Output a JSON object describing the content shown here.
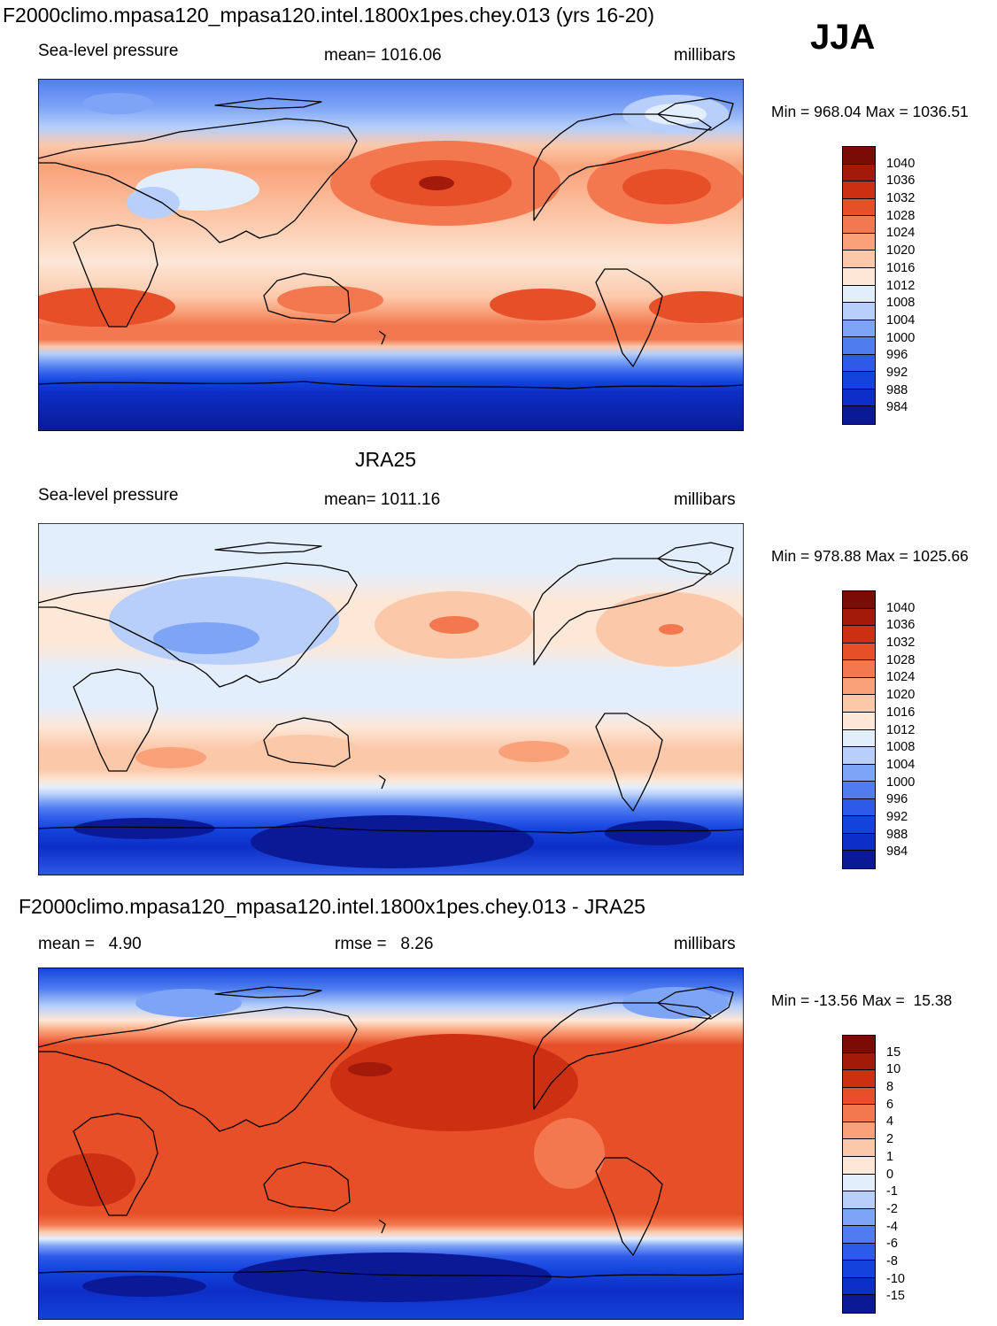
{
  "season": "JJA",
  "panels": [
    {
      "id": "model",
      "title": "F2000climo.mpasa120_mpasa120.intel.1800x1pes.chey.013 (yrs 16-20)",
      "left_label": "Sea-level pressure",
      "center_label": "mean= 1016.06",
      "right_label": "millibars",
      "minmax": "Min = 968.04 Max = 1036.51",
      "levels": [
        "984",
        "988",
        "992",
        "996",
        "1000",
        "1004",
        "1008",
        "1012",
        "1016",
        "1020",
        "1024",
        "1028",
        "1032",
        "1036",
        "1040"
      ],
      "colors": [
        "#0a1a96",
        "#0d2ec7",
        "#1343dc",
        "#2d5ae8",
        "#4f7df0",
        "#7ea4f6",
        "#b7cffa",
        "#e3eefc",
        "#fde7d6",
        "#fcc8aa",
        "#f9a27a",
        "#f3784f",
        "#e74f29",
        "#cc2f12",
        "#a31a0a",
        "#7a0c04"
      ]
    },
    {
      "id": "obs",
      "title": "JRA25",
      "left_label": "Sea-level pressure",
      "center_label": "mean= 1011.16",
      "right_label": "millibars",
      "minmax": "Min = 978.88 Max = 1025.66",
      "levels": [
        "984",
        "988",
        "992",
        "996",
        "1000",
        "1004",
        "1008",
        "1012",
        "1016",
        "1020",
        "1024",
        "1028",
        "1032",
        "1036",
        "1040"
      ],
      "colors": [
        "#0a1a96",
        "#0d2ec7",
        "#1343dc",
        "#2d5ae8",
        "#4f7df0",
        "#7ea4f6",
        "#b7cffa",
        "#e3eefc",
        "#fde7d6",
        "#fcc8aa",
        "#f9a27a",
        "#f3784f",
        "#e74f29",
        "#cc2f12",
        "#a31a0a",
        "#7a0c04"
      ]
    },
    {
      "id": "diff",
      "title": "F2000climo.mpasa120_mpasa120.intel.1800x1pes.chey.013 - JRA25",
      "left_label": "mean =   4.90",
      "center_label": "rmse =   8.26",
      "right_label": "millibars",
      "minmax": "Min = -13.56 Max =  15.38",
      "levels": [
        "-15",
        "-10",
        "-8",
        "-6",
        "-4",
        "-2",
        "-1",
        "0",
        "1",
        "2",
        "4",
        "6",
        "8",
        "10",
        "15"
      ],
      "colors": [
        "#0a1a96",
        "#0d2ec7",
        "#1343dc",
        "#2d5ae8",
        "#4f7df0",
        "#7ea4f6",
        "#b7cffa",
        "#e3eefc",
        "#fde7d6",
        "#fcc8aa",
        "#f9a27a",
        "#f3784f",
        "#e74f29",
        "#cc2f12",
        "#a31a0a",
        "#7a0c04"
      ]
    }
  ]
}
